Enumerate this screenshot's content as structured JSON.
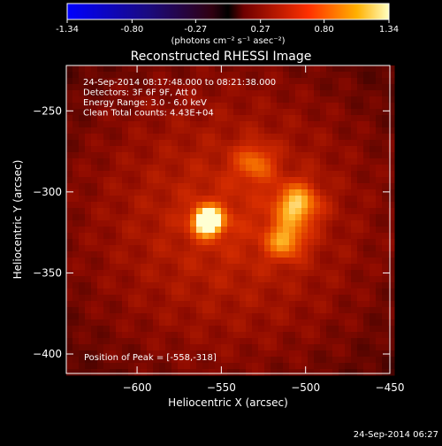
{
  "colorbar": {
    "ticks": [
      "-1.34",
      "-0.80",
      "-0.27",
      "0.27",
      "0.80",
      "1.34"
    ],
    "tick_values": [
      -1.34,
      -0.8,
      -0.27,
      0.27,
      0.8,
      1.34
    ],
    "range": [
      -1.34,
      1.34
    ],
    "unit_label": "(photons cm⁻² s⁻¹ asec⁻²)"
  },
  "chart_data": {
    "type": "heatmap",
    "title": "Reconstructed RHESSI Image",
    "xlabel": "Heliocentric X (arcsec)",
    "ylabel": "Heliocentric Y (arcsec)",
    "xlim": [
      -642,
      -450
    ],
    "ylim": [
      -412,
      -222
    ],
    "x_ticks": [
      -600,
      -550,
      -500,
      -450
    ],
    "x_tick_labels": [
      "−600",
      "−550",
      "−500",
      "−450"
    ],
    "y_ticks": [
      -250,
      -300,
      -350,
      -400
    ],
    "y_tick_labels": [
      "−250",
      "−300",
      "−350",
      "−400"
    ],
    "sources": [
      {
        "x": -558,
        "y": -318,
        "sigma": 6,
        "amp": 1.34
      },
      {
        "x": -505,
        "y": -308,
        "sigma": 9,
        "amp": 0.75
      },
      {
        "x": -512,
        "y": -330,
        "sigma": 8,
        "amp": 0.6
      },
      {
        "x": -530,
        "y": -282,
        "sigma": 8,
        "amp": 0.45
      }
    ],
    "info_lines": [
      "24-Sep-2014 08:17:48.000 to 08:21:38.000",
      "Detectors: 3F 6F 9F, Att 0",
      "Energy Range: 3.0 - 6.0 keV",
      "Clean    Total counts: 4.43E+04"
    ],
    "peak_text": "Position of Peak = [-558,-318]"
  },
  "footer_date": "24-Sep-2014 06:27"
}
